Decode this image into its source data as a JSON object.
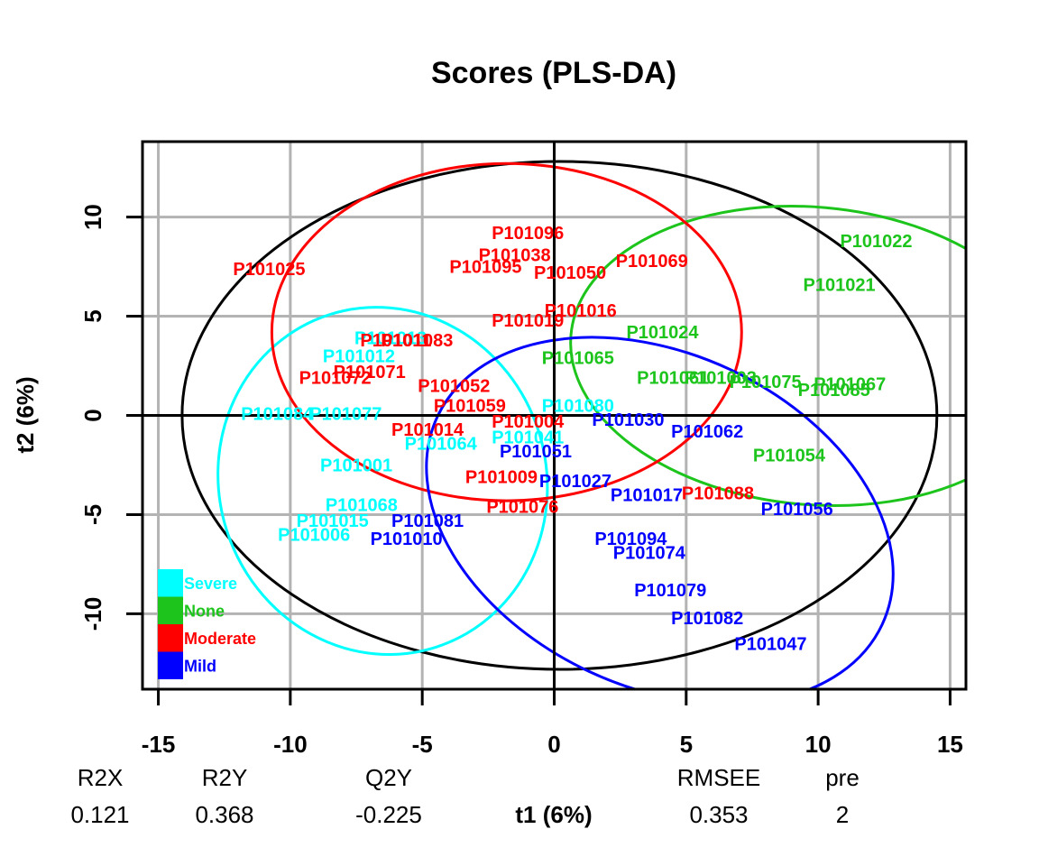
{
  "chart_data": {
    "type": "scatter",
    "title": "Scores (PLS-DA)",
    "xlabel": "t1 (6%)",
    "ylabel": "t2 (6%)",
    "xlim": [
      -15.6,
      15.6
    ],
    "ylim": [
      -13.8,
      13.8
    ],
    "xticks": [
      -15,
      -10,
      -5,
      0,
      5,
      10,
      15
    ],
    "yticks": [
      -10,
      -5,
      0,
      5,
      10
    ],
    "grid": true,
    "legend_position": "bottom-left",
    "series": [
      {
        "name": "Severe",
        "color": "#00FFFF",
        "ellipse": {
          "cx": -6.5,
          "cy": -3.3,
          "rx": 6.2,
          "ry": 8.8,
          "rotation_deg": 18
        },
        "points": [
          {
            "label": "P101080",
            "x": 0.9,
            "y": 0.5
          },
          {
            "label": "P101064",
            "x": -4.3,
            "y": -1.4
          },
          {
            "label": "P101041",
            "x": -1.0,
            "y": -1.1
          },
          {
            "label": "P101001",
            "x": -7.5,
            "y": -2.5
          },
          {
            "label": "P101068",
            "x": -7.3,
            "y": -4.5
          },
          {
            "label": "P101012",
            "x": -7.4,
            "y": 3.0
          },
          {
            "label": "P101013",
            "x": -6.2,
            "y": 3.9
          },
          {
            "label": "P101084",
            "x": -10.5,
            "y": 0.1
          },
          {
            "label": "P101077",
            "x": -7.9,
            "y": 0.1
          },
          {
            "label": "P101015",
            "x": -8.4,
            "y": -5.3
          },
          {
            "label": "P101006",
            "x": -9.1,
            "y": -6.0
          }
        ]
      },
      {
        "name": "None",
        "color": "#1CC41C",
        "ellipse": {
          "cx": 9.8,
          "cy": 3.0,
          "rx": 9.2,
          "ry": 7.5,
          "rotation_deg": -5
        },
        "points": [
          {
            "label": "P101022",
            "x": 12.2,
            "y": 8.8
          },
          {
            "label": "P101021",
            "x": 10.8,
            "y": 6.6
          },
          {
            "label": "P101024",
            "x": 4.1,
            "y": 4.2
          },
          {
            "label": "P101065",
            "x": 0.9,
            "y": 2.9
          },
          {
            "label": "P101061",
            "x": 4.5,
            "y": 1.9
          },
          {
            "label": "P101003",
            "x": 6.3,
            "y": 1.9
          },
          {
            "label": "P101075",
            "x": 8.0,
            "y": 1.7
          },
          {
            "label": "P101067",
            "x": 11.2,
            "y": 1.6
          },
          {
            "label": "P101085",
            "x": 10.6,
            "y": 1.3
          },
          {
            "label": "P101054",
            "x": 8.9,
            "y": -2.0
          }
        ]
      },
      {
        "name": "Moderate",
        "color": "#FF0000",
        "ellipse": {
          "cx": -1.8,
          "cy": 4.2,
          "rx": 8.9,
          "ry": 8.5,
          "rotation_deg": 0
        },
        "points": [
          {
            "label": "P101096",
            "x": -1.0,
            "y": 9.2
          },
          {
            "label": "P101038",
            "x": -1.5,
            "y": 8.1
          },
          {
            "label": "P101095",
            "x": -2.6,
            "y": 7.5
          },
          {
            "label": "P101050",
            "x": 0.6,
            "y": 7.2
          },
          {
            "label": "P101069",
            "x": 3.7,
            "y": 7.8
          },
          {
            "label": "P101025",
            "x": -10.8,
            "y": 7.4
          },
          {
            "label": "P101016",
            "x": 1.0,
            "y": 5.3
          },
          {
            "label": "P101019",
            "x": -1.0,
            "y": 4.8
          },
          {
            "label": "P101083",
            "x": -5.2,
            "y": 3.8
          },
          {
            "label": "P101011",
            "x": -6.0,
            "y": 3.8
          },
          {
            "label": "P101071",
            "x": -7.0,
            "y": 2.2
          },
          {
            "label": "P101072",
            "x": -8.3,
            "y": 1.9
          },
          {
            "label": "P101052",
            "x": -3.8,
            "y": 1.5
          },
          {
            "label": "P101059",
            "x": -3.2,
            "y": 0.5
          },
          {
            "label": "P101014",
            "x": -4.8,
            "y": -0.7
          },
          {
            "label": "P101004",
            "x": -1.0,
            "y": -0.3
          },
          {
            "label": "P101009",
            "x": -2.0,
            "y": -3.1
          },
          {
            "label": "P101076",
            "x": -1.2,
            "y": -4.6
          },
          {
            "label": "P101088",
            "x": 6.2,
            "y": -3.9
          }
        ]
      },
      {
        "name": "Mild",
        "color": "#0000FF",
        "ellipse": {
          "cx": 4.0,
          "cy": -5.3,
          "rx": 9.3,
          "ry": 8.4,
          "rotation_deg": -25
        },
        "points": [
          {
            "label": "P101030",
            "x": 2.8,
            "y": -0.2
          },
          {
            "label": "P101062",
            "x": 5.8,
            "y": -0.8
          },
          {
            "label": "P101051",
            "x": -0.7,
            "y": -1.8
          },
          {
            "label": "P101027",
            "x": 0.8,
            "y": -3.3
          },
          {
            "label": "P101017",
            "x": 3.5,
            "y": -4.0
          },
          {
            "label": "P101056",
            "x": 9.2,
            "y": -4.7
          },
          {
            "label": "P101081",
            "x": -4.8,
            "y": -5.3
          },
          {
            "label": "P101010",
            "x": -5.6,
            "y": -6.2
          },
          {
            "label": "P101094",
            "x": 2.9,
            "y": -6.2
          },
          {
            "label": "P101074",
            "x": 3.6,
            "y": -6.9
          },
          {
            "label": "P101079",
            "x": 4.4,
            "y": -8.8
          },
          {
            "label": "P101082",
            "x": 5.8,
            "y": -10.2
          },
          {
            "label": "P101047",
            "x": 8.2,
            "y": -11.5
          }
        ]
      }
    ],
    "overall_ellipse": {
      "cx": 0.2,
      "cy": 0.0,
      "rx": 14.3,
      "ry": 12.8,
      "color": "#000000"
    }
  },
  "metrics": [
    {
      "name": "R2X",
      "value": "0.121"
    },
    {
      "name": "R2Y",
      "value": "0.368"
    },
    {
      "name": "Q2Y",
      "value": "-0.225"
    },
    {
      "name": "RMSEE",
      "value": "0.353"
    },
    {
      "name": "pre",
      "value": "2"
    }
  ]
}
